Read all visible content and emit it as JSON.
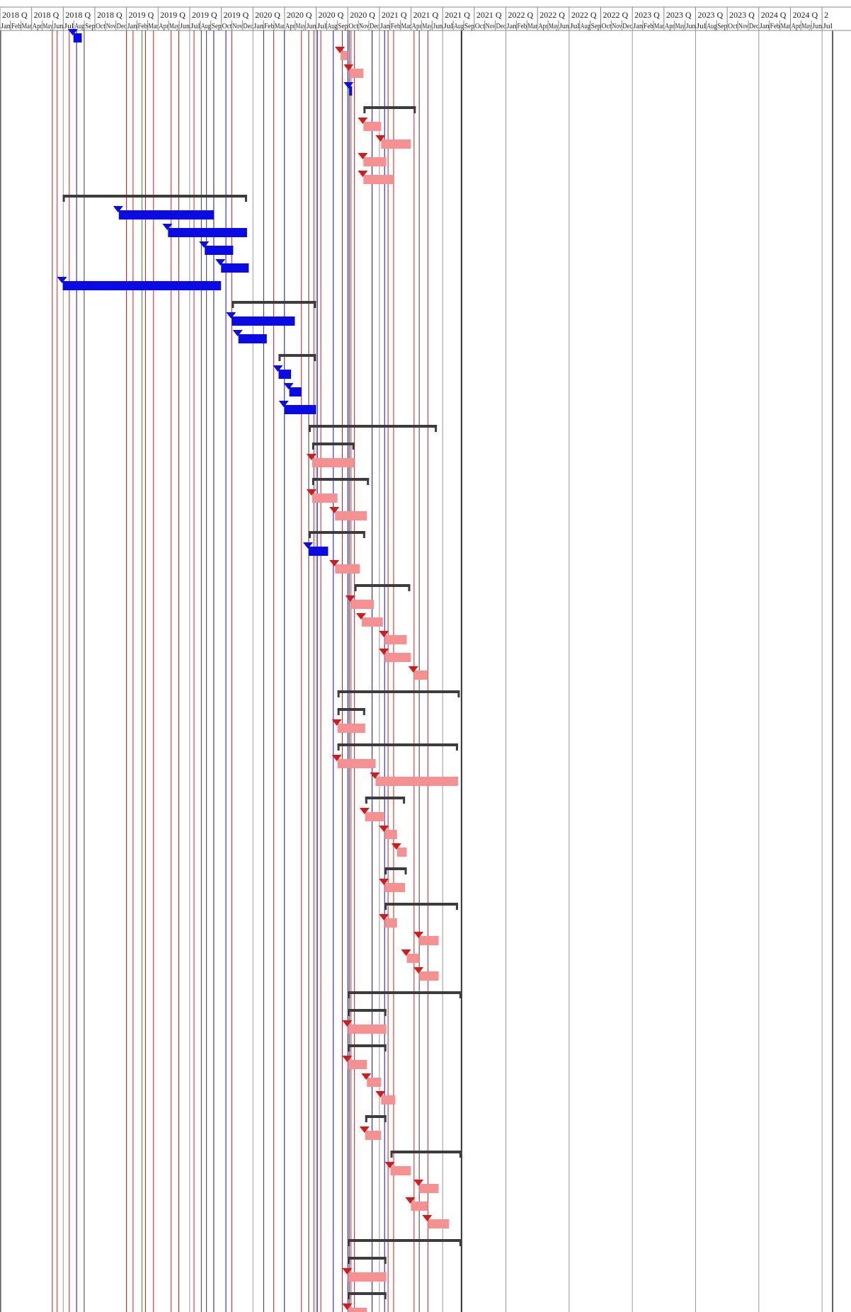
{
  "header": {
    "quarters": [
      "2018 Q",
      "2018 Q",
      "2018 Q",
      "2018 Q",
      "2019 Q",
      "2019 Q",
      "2019 Q",
      "2019 Q",
      "2020 Q",
      "2020 Q",
      "2020 Q",
      "2020 Q",
      "2021 Q",
      "2021 Q",
      "2021 Q",
      "2021 Q",
      "2022 Q",
      "2022 Q",
      "2022 Q",
      "2022 Q",
      "2023 Q",
      "2023 Q",
      "2023 Q",
      "2023 Q",
      "2024 Q",
      "2024 Q",
      "2"
    ],
    "months": [
      "Jan",
      "Feb",
      "Mar",
      "Apr",
      "May",
      "Jun",
      "Jul",
      "Aug",
      "Sep",
      "Oct",
      "Nov",
      "Dec",
      "Jan",
      "Feb",
      "Mar",
      "Apr",
      "May",
      "Jun",
      "Jul",
      "Aug",
      "Sep",
      "Oct",
      "Nov",
      "Dec",
      "Jan",
      "Feb",
      "Mar",
      "Apr",
      "May",
      "Jun",
      "Jul",
      "Aug",
      "Sep",
      "Oct",
      "Nov",
      "Dec",
      "Jan",
      "Feb",
      "Mar",
      "Apr",
      "May",
      "Jun",
      "Jul",
      "Aug",
      "Sep",
      "Oct",
      "Nov",
      "Dec",
      "Jan",
      "Feb",
      "Mar",
      "Apr",
      "May",
      "Jun",
      "Jul",
      "Aug",
      "Sep",
      "Oct",
      "Nov",
      "Dec",
      "Jan",
      "Feb",
      "Mar",
      "Apr",
      "May",
      "Jun",
      "Jul",
      "Aug",
      "Sep",
      "Oct",
      "Nov",
      "Dec",
      "Jan",
      "Feb",
      "Mar",
      "Apr",
      "May",
      "Jun",
      "Jul"
    ]
  },
  "colors": {
    "critical_task": "#f79090",
    "critical_link": "#d61a1a",
    "normal_task": "#0a0ae6",
    "normal_link": "#0a0ae6",
    "summary": "#3c3c3c",
    "milestone_line": "#2e8b2e",
    "grid": "#999999"
  },
  "timeline": {
    "start": "2018-01-01",
    "end": "2024-07-31"
  },
  "tasks": [
    {
      "type": "bar",
      "style": "normal",
      "start": "2018-08-01",
      "end": "2018-08-25"
    },
    {
      "type": "bar",
      "style": "critical",
      "start": "2020-09-10",
      "end": "2020-10-01"
    },
    {
      "type": "bar",
      "style": "critical",
      "start": "2020-10-05",
      "end": "2020-11-15"
    },
    {
      "type": "bar",
      "style": "normal",
      "start": "2020-10-05",
      "end": "2020-10-10"
    },
    {
      "type": "summary",
      "start": "2020-11-15",
      "end": "2021-04-15"
    },
    {
      "type": "bar",
      "style": "critical",
      "start": "2020-11-15",
      "end": "2021-01-05"
    },
    {
      "type": "bar",
      "style": "critical",
      "start": "2021-01-05",
      "end": "2021-04-01"
    },
    {
      "type": "bar",
      "style": "critical",
      "start": "2020-11-15",
      "end": "2021-01-20"
    },
    {
      "type": "bar",
      "style": "critical",
      "start": "2020-11-15",
      "end": "2021-02-10"
    },
    {
      "type": "summary",
      "start": "2018-07-01",
      "end": "2019-12-15"
    },
    {
      "type": "bar",
      "style": "normal",
      "start": "2018-12-10",
      "end": "2019-09-10"
    },
    {
      "type": "bar",
      "style": "normal",
      "start": "2019-05-01",
      "end": "2019-12-15"
    },
    {
      "type": "bar",
      "style": "normal",
      "start": "2019-08-15",
      "end": "2019-11-05"
    },
    {
      "type": "bar",
      "style": "normal",
      "start": "2019-10-01",
      "end": "2019-12-20"
    },
    {
      "type": "bar",
      "style": "normal",
      "start": "2018-07-01",
      "end": "2019-10-01"
    },
    {
      "type": "summary",
      "start": "2019-11-01",
      "end": "2020-07-01"
    },
    {
      "type": "bar",
      "style": "normal",
      "start": "2019-11-01",
      "end": "2020-05-01"
    },
    {
      "type": "bar",
      "style": "normal",
      "start": "2019-11-20",
      "end": "2020-02-10"
    },
    {
      "type": "summary",
      "start": "2020-03-15",
      "end": "2020-07-01"
    },
    {
      "type": "bar",
      "style": "normal",
      "start": "2020-03-15",
      "end": "2020-04-20"
    },
    {
      "type": "bar",
      "style": "normal",
      "start": "2020-04-15",
      "end": "2020-05-20"
    },
    {
      "type": "bar",
      "style": "normal",
      "start": "2020-04-01",
      "end": "2020-07-01"
    },
    {
      "type": "summary",
      "start": "2020-06-10",
      "end": "2021-06-15"
    },
    {
      "type": "summary",
      "start": "2020-06-20",
      "end": "2020-10-20"
    },
    {
      "type": "bar",
      "style": "critical",
      "start": "2020-06-20",
      "end": "2020-10-20"
    },
    {
      "type": "summary",
      "start": "2020-06-20",
      "end": "2020-12-01"
    },
    {
      "type": "bar",
      "style": "critical",
      "start": "2020-06-20",
      "end": "2020-09-01"
    },
    {
      "type": "bar",
      "style": "critical",
      "start": "2020-08-25",
      "end": "2020-11-25"
    },
    {
      "type": "summary",
      "start": "2020-06-10",
      "end": "2020-11-20"
    },
    {
      "type": "bar",
      "style": "normal",
      "start": "2020-06-10",
      "end": "2020-08-05"
    },
    {
      "type": "bar",
      "style": "critical",
      "start": "2020-08-25",
      "end": "2020-11-05"
    },
    {
      "type": "summary",
      "start": "2020-10-20",
      "end": "2021-03-30"
    },
    {
      "type": "bar",
      "style": "critical",
      "start": "2020-10-10",
      "end": "2020-12-15"
    },
    {
      "type": "bar",
      "style": "critical",
      "start": "2020-11-10",
      "end": "2021-01-10"
    },
    {
      "type": "bar",
      "style": "critical",
      "start": "2021-01-15",
      "end": "2021-03-20"
    },
    {
      "type": "bar",
      "style": "critical",
      "start": "2021-01-15",
      "end": "2021-04-01"
    },
    {
      "type": "bar",
      "style": "critical",
      "start": "2021-04-10",
      "end": "2021-05-20"
    },
    {
      "type": "summary",
      "start": "2020-09-01",
      "end": "2021-08-20"
    },
    {
      "type": "summary",
      "start": "2020-09-01",
      "end": "2020-11-20"
    },
    {
      "type": "bar",
      "style": "critical",
      "start": "2020-09-01",
      "end": "2020-11-20"
    },
    {
      "type": "summary",
      "start": "2020-09-01",
      "end": "2021-08-15"
    },
    {
      "type": "bar",
      "style": "critical",
      "start": "2020-09-01",
      "end": "2020-12-20"
    },
    {
      "type": "bar",
      "style": "critical",
      "start": "2020-12-20",
      "end": "2021-08-15"
    },
    {
      "type": "summary",
      "start": "2020-11-20",
      "end": "2021-03-15"
    },
    {
      "type": "bar",
      "style": "critical",
      "start": "2020-11-20",
      "end": "2021-01-15"
    },
    {
      "type": "bar",
      "style": "critical",
      "start": "2021-01-15",
      "end": "2021-02-20"
    },
    {
      "type": "bar",
      "style": "critical",
      "start": "2021-02-20",
      "end": "2021-03-20"
    },
    {
      "type": "summary",
      "start": "2021-01-15",
      "end": "2021-03-20"
    },
    {
      "type": "bar",
      "style": "critical",
      "start": "2021-01-15",
      "end": "2021-03-15"
    },
    {
      "type": "summary",
      "start": "2021-01-15",
      "end": "2021-08-15"
    },
    {
      "type": "bar",
      "style": "critical",
      "start": "2021-01-15",
      "end": "2021-02-20"
    },
    {
      "type": "bar",
      "style": "critical",
      "start": "2021-04-25",
      "end": "2021-06-20"
    },
    {
      "type": "bar",
      "style": "critical",
      "start": "2021-03-20",
      "end": "2021-04-25"
    },
    {
      "type": "bar",
      "style": "critical",
      "start": "2021-04-25",
      "end": "2021-06-20"
    },
    {
      "type": "summary",
      "start": "2020-10-01",
      "end": "2021-08-25"
    },
    {
      "type": "summary",
      "start": "2020-10-01",
      "end": "2021-01-20"
    },
    {
      "type": "bar",
      "style": "critical",
      "start": "2020-10-01",
      "end": "2021-01-20"
    },
    {
      "type": "summary",
      "start": "2020-10-01",
      "end": "2021-01-20"
    },
    {
      "type": "bar",
      "style": "critical",
      "start": "2020-10-01",
      "end": "2020-11-25"
    },
    {
      "type": "bar",
      "style": "critical",
      "start": "2020-11-25",
      "end": "2021-01-05"
    },
    {
      "type": "bar",
      "style": "critical",
      "start": "2021-01-05",
      "end": "2021-02-15"
    },
    {
      "type": "summary",
      "start": "2020-11-20",
      "end": "2021-01-20"
    },
    {
      "type": "bar",
      "style": "critical",
      "start": "2020-11-20",
      "end": "2021-01-05"
    },
    {
      "type": "summary",
      "start": "2021-02-01",
      "end": "2021-08-25"
    },
    {
      "type": "bar",
      "style": "critical",
      "start": "2021-02-01",
      "end": "2021-04-01"
    },
    {
      "type": "bar",
      "style": "critical",
      "start": "2021-04-25",
      "end": "2021-06-20"
    },
    {
      "type": "bar",
      "style": "critical",
      "start": "2021-04-01",
      "end": "2021-05-20"
    },
    {
      "type": "bar",
      "style": "critical",
      "start": "2021-05-20",
      "end": "2021-07-20"
    },
    {
      "type": "summary",
      "start": "2020-10-01",
      "end": "2021-08-25"
    },
    {
      "type": "summary",
      "start": "2020-10-01",
      "end": "2021-01-20"
    },
    {
      "type": "bar",
      "style": "critical",
      "start": "2020-10-01",
      "end": "2021-01-20"
    },
    {
      "type": "summary",
      "start": "2020-10-01",
      "end": "2021-01-20"
    },
    {
      "type": "bar",
      "style": "critical",
      "start": "2020-10-01",
      "end": "2020-11-25"
    }
  ],
  "vertical_lines": [
    {
      "date": "2018-06-01",
      "style": "critical"
    },
    {
      "date": "2018-06-15",
      "style": "critical"
    },
    {
      "date": "2018-07-20",
      "style": "critical"
    },
    {
      "date": "2018-08-10",
      "style": "normal"
    },
    {
      "date": "2018-09-01",
      "style": "summary"
    },
    {
      "date": "2019-01-01",
      "style": "critical"
    },
    {
      "date": "2019-01-20",
      "style": "critical"
    },
    {
      "date": "2019-02-15",
      "style": "milestone"
    },
    {
      "date": "2019-02-25",
      "style": "critical"
    },
    {
      "date": "2019-03-20",
      "style": "critical"
    },
    {
      "date": "2019-05-10",
      "style": "critical"
    },
    {
      "date": "2019-06-01",
      "style": "critical"
    },
    {
      "date": "2019-07-15",
      "style": "critical"
    },
    {
      "date": "2019-08-05",
      "style": "summary"
    },
    {
      "date": "2019-08-20",
      "style": "summary"
    },
    {
      "date": "2019-09-10",
      "style": "normal"
    },
    {
      "date": "2019-10-15",
      "style": "normal"
    },
    {
      "date": "2019-11-01",
      "style": "critical"
    },
    {
      "date": "2020-02-01",
      "style": "summary"
    },
    {
      "date": "2020-03-01",
      "style": "critical"
    },
    {
      "date": "2020-04-01",
      "style": "normal"
    },
    {
      "date": "2020-05-20",
      "style": "critical"
    },
    {
      "date": "2020-06-10",
      "style": "summary"
    },
    {
      "date": "2020-06-25",
      "style": "critical"
    },
    {
      "date": "2020-07-05",
      "style": "normal"
    },
    {
      "date": "2020-07-15",
      "style": "critical"
    },
    {
      "date": "2020-08-20",
      "style": "normal"
    },
    {
      "date": "2020-09-15",
      "style": "critical"
    },
    {
      "date": "2020-10-01",
      "style": "normal"
    },
    {
      "date": "2020-10-05",
      "style": "summary"
    },
    {
      "date": "2020-10-10",
      "style": "critical"
    },
    {
      "date": "2020-10-20",
      "style": "critical"
    },
    {
      "date": "2020-12-10",
      "style": "normal"
    },
    {
      "date": "2021-01-15",
      "style": "normal"
    },
    {
      "date": "2021-01-25",
      "style": "critical"
    },
    {
      "date": "2021-02-10",
      "style": "critical"
    },
    {
      "date": "2021-04-10",
      "style": "critical"
    },
    {
      "date": "2021-04-25",
      "style": "summary"
    },
    {
      "date": "2021-05-20",
      "style": "critical"
    }
  ]
}
